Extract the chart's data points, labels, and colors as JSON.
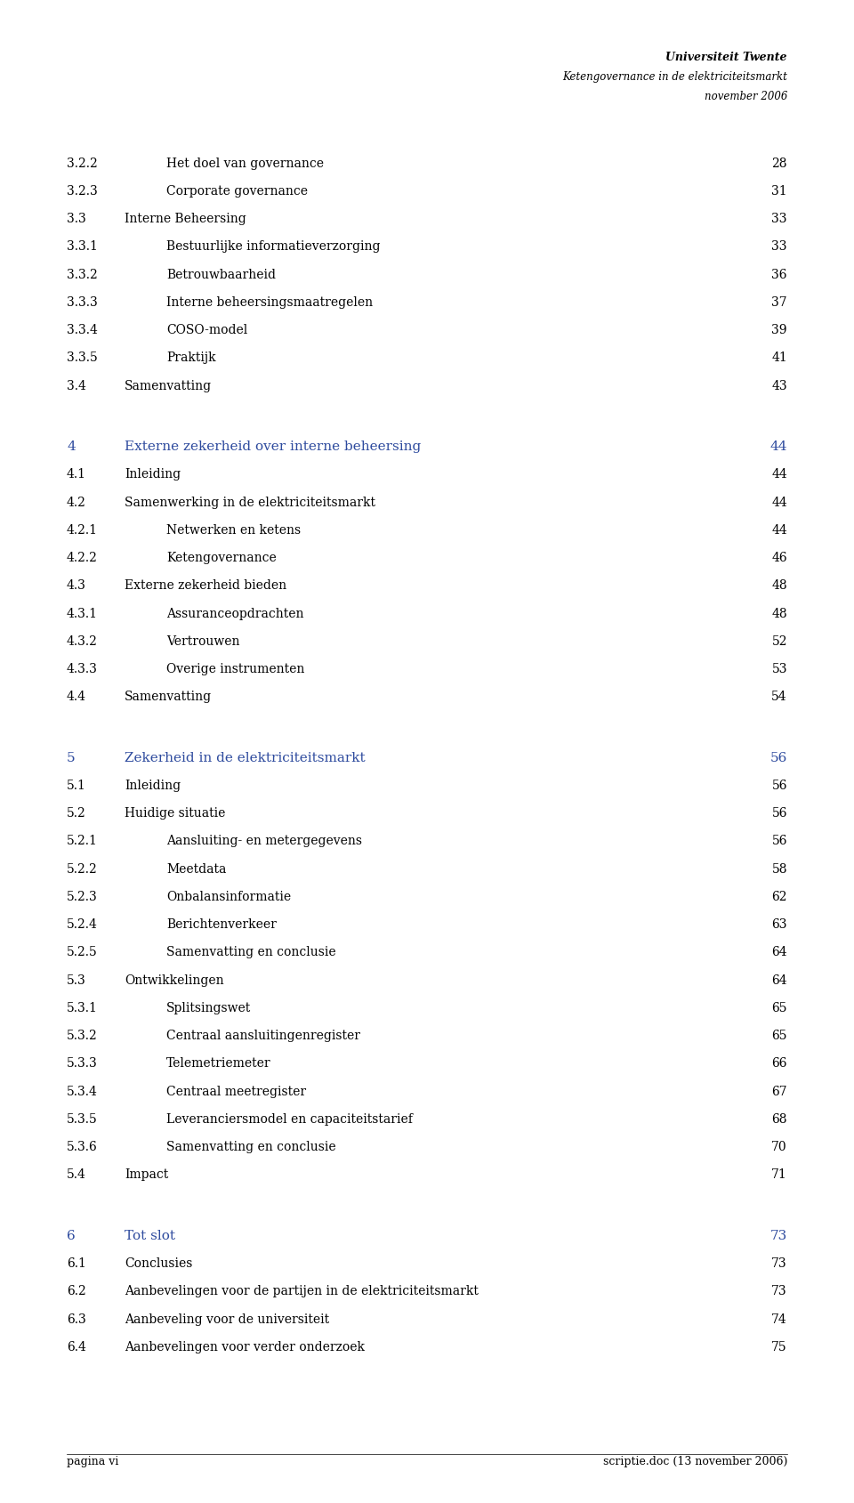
{
  "header_line1": "Universiteit Twente",
  "header_line2": "Ketengovernance in de elektriciteitsmarkt",
  "header_line3": "november 2006",
  "footer_left": "pagina vi",
  "footer_right": "scriptie.doc (13 november 2006)",
  "background_color": "#ffffff",
  "text_color": "#000000",
  "blue_color": "#2e4b9e",
  "entries": [
    {
      "num": "3.2.2",
      "indent": 2,
      "text": "Het doel van governance",
      "page": "28",
      "style": "normal"
    },
    {
      "num": "3.2.3",
      "indent": 2,
      "text": "Corporate governance",
      "page": "31",
      "style": "normal"
    },
    {
      "num": "3.3",
      "indent": 1,
      "text": "Interne Beheersing",
      "page": "33",
      "style": "normal"
    },
    {
      "num": "3.3.1",
      "indent": 2,
      "text": "Bestuurlijke informatieverzorging",
      "page": "33",
      "style": "normal"
    },
    {
      "num": "3.3.2",
      "indent": 2,
      "text": "Betrouwbaarheid",
      "page": "36",
      "style": "normal"
    },
    {
      "num": "3.3.3",
      "indent": 2,
      "text": "Interne beheersingsmaatregelen",
      "page": "37",
      "style": "normal"
    },
    {
      "num": "3.3.4",
      "indent": 2,
      "text": "COSO-model",
      "page": "39",
      "style": "normal"
    },
    {
      "num": "3.3.5",
      "indent": 2,
      "text": "Praktijk",
      "page": "41",
      "style": "normal"
    },
    {
      "num": "3.4",
      "indent": 1,
      "text": "Samenvatting",
      "page": "43",
      "style": "normal"
    },
    {
      "num": "",
      "indent": 0,
      "text": "",
      "page": "",
      "style": "spacer"
    },
    {
      "num": "4",
      "indent": 0,
      "text": "Externe zekerheid over interne beheersing",
      "page": "44",
      "style": "chapter"
    },
    {
      "num": "4.1",
      "indent": 1,
      "text": "Inleiding",
      "page": "44",
      "style": "normal"
    },
    {
      "num": "4.2",
      "indent": 1,
      "text": "Samenwerking in de elektriciteitsmarkt",
      "page": "44",
      "style": "normal"
    },
    {
      "num": "4.2.1",
      "indent": 2,
      "text": "Netwerken en ketens",
      "page": "44",
      "style": "normal"
    },
    {
      "num": "4.2.2",
      "indent": 2,
      "text": "Ketengovernance",
      "page": "46",
      "style": "normal"
    },
    {
      "num": "4.3",
      "indent": 1,
      "text": "Externe zekerheid bieden",
      "page": "48",
      "style": "normal"
    },
    {
      "num": "4.3.1",
      "indent": 2,
      "text": "Assuranceopdrachten",
      "page": "48",
      "style": "normal"
    },
    {
      "num": "4.3.2",
      "indent": 2,
      "text": "Vertrouwen",
      "page": "52",
      "style": "normal"
    },
    {
      "num": "4.3.3",
      "indent": 2,
      "text": "Overige instrumenten",
      "page": "53",
      "style": "normal"
    },
    {
      "num": "4.4",
      "indent": 1,
      "text": "Samenvatting",
      "page": "54",
      "style": "normal"
    },
    {
      "num": "",
      "indent": 0,
      "text": "",
      "page": "",
      "style": "spacer"
    },
    {
      "num": "5",
      "indent": 0,
      "text": "Zekerheid in de elektriciteitsmarkt",
      "page": "56",
      "style": "chapter"
    },
    {
      "num": "5.1",
      "indent": 1,
      "text": "Inleiding",
      "page": "56",
      "style": "normal"
    },
    {
      "num": "5.2",
      "indent": 1,
      "text": "Huidige situatie",
      "page": "56",
      "style": "normal"
    },
    {
      "num": "5.2.1",
      "indent": 2,
      "text": "Aansluiting- en metergegevens",
      "page": "56",
      "style": "normal"
    },
    {
      "num": "5.2.2",
      "indent": 2,
      "text": "Meetdata",
      "page": "58",
      "style": "normal"
    },
    {
      "num": "5.2.3",
      "indent": 2,
      "text": "Onbalansinformatie",
      "page": "62",
      "style": "normal"
    },
    {
      "num": "5.2.4",
      "indent": 2,
      "text": "Berichtenverkeer",
      "page": "63",
      "style": "normal"
    },
    {
      "num": "5.2.5",
      "indent": 2,
      "text": "Samenvatting en conclusie",
      "page": "64",
      "style": "normal"
    },
    {
      "num": "5.3",
      "indent": 1,
      "text": "Ontwikkelingen",
      "page": "64",
      "style": "normal"
    },
    {
      "num": "5.3.1",
      "indent": 2,
      "text": "Splitsingswet",
      "page": "65",
      "style": "normal"
    },
    {
      "num": "5.3.2",
      "indent": 2,
      "text": "Centraal aansluitingenregister",
      "page": "65",
      "style": "normal"
    },
    {
      "num": "5.3.3",
      "indent": 2,
      "text": "Telemetriemeter",
      "page": "66",
      "style": "normal"
    },
    {
      "num": "5.3.4",
      "indent": 2,
      "text": "Centraal meetregister",
      "page": "67",
      "style": "normal"
    },
    {
      "num": "5.3.5",
      "indent": 2,
      "text": "Leveranciersmodel en capaciteitstarief",
      "page": "68",
      "style": "normal"
    },
    {
      "num": "5.3.6",
      "indent": 2,
      "text": "Samenvatting en conclusie",
      "page": "70",
      "style": "normal"
    },
    {
      "num": "5.4",
      "indent": 1,
      "text": "Impact",
      "page": "71",
      "style": "normal"
    },
    {
      "num": "",
      "indent": 0,
      "text": "",
      "page": "",
      "style": "spacer"
    },
    {
      "num": "6",
      "indent": 0,
      "text": "Tot slot",
      "page": "73",
      "style": "chapter"
    },
    {
      "num": "6.1",
      "indent": 1,
      "text": "Conclusies",
      "page": "73",
      "style": "normal"
    },
    {
      "num": "6.2",
      "indent": 1,
      "text": "Aanbevelingen voor de partijen in de elektriciteitsmarkt",
      "page": "73",
      "style": "normal"
    },
    {
      "num": "6.3",
      "indent": 1,
      "text": "Aanbeveling voor de universiteit",
      "page": "74",
      "style": "normal"
    },
    {
      "num": "6.4",
      "indent": 1,
      "text": "Aanbevelingen voor verder onderzoek",
      "page": "75",
      "style": "normal"
    }
  ]
}
